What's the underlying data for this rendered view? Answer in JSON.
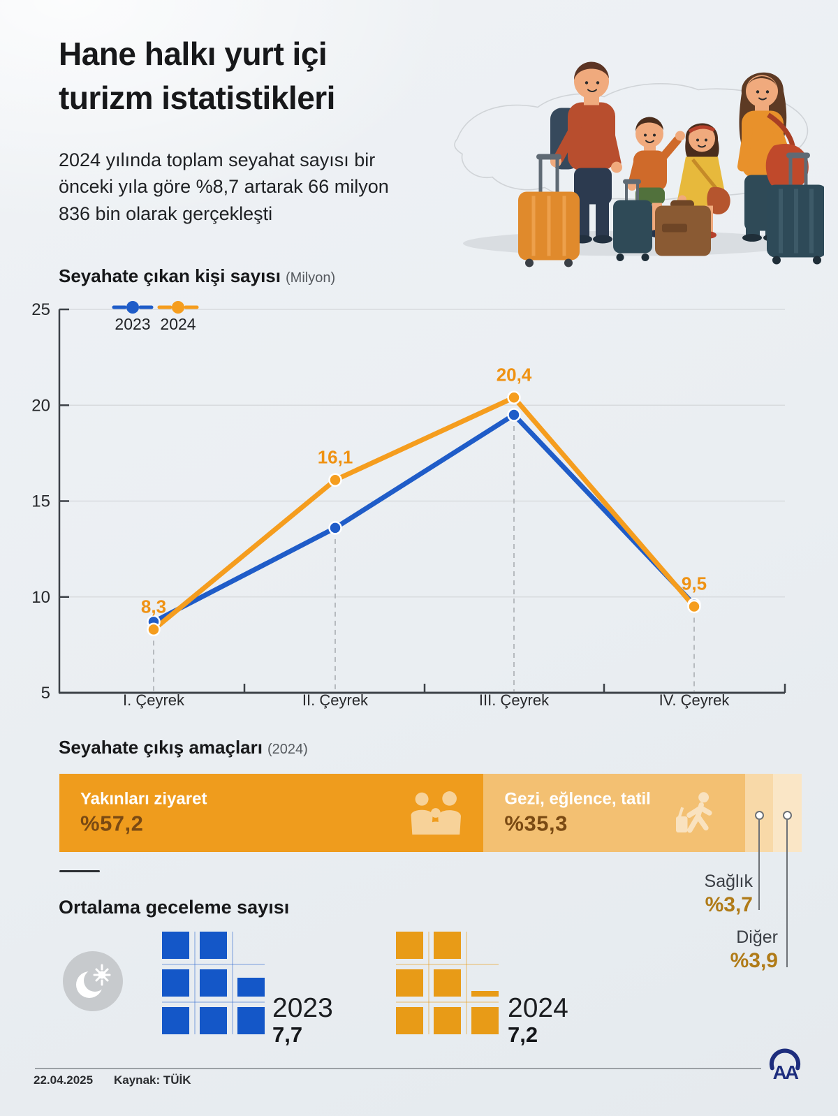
{
  "page": {
    "title": "Hane halkı yurt içi\nturizm istatistikleri",
    "subtitle": "2024 yılında toplam seyahat sayısı bir önceki yıla göre %8,7 artarak 66 milyon 836 bin olarak gerçekleşti",
    "date": "22.04.2025",
    "source": "Kaynak: TÜİK",
    "logo_text": "AA",
    "illustration": "family-with-luggage-and-turkey-map"
  },
  "colors": {
    "blue": "#1f5cc8",
    "orange": "#f59d1e",
    "label_orange": "#ef9213",
    "axis": "#3c4147",
    "grid": "#d8dbde",
    "guide": "#a9adb2",
    "waffle_blue": "#1457c8",
    "waffle_orange": "#e89b17",
    "logo_navy": "#1d2d7d"
  },
  "chart_data": [
    {
      "type": "line",
      "title": "Seyahate çıkan kişi sayısı",
      "title_suffix": "(Milyon)",
      "categories": [
        "I. Çeyrek",
        "II. Çeyrek",
        "III. Çeyrek",
        "IV. Çeyrek"
      ],
      "series": [
        {
          "name": "2023",
          "color": "#1f5cc8",
          "values": [
            8.7,
            13.6,
            19.5,
            9.6
          ],
          "value_labels": null
        },
        {
          "name": "2024",
          "color": "#f59d1e",
          "values": [
            8.3,
            16.1,
            20.4,
            9.5
          ],
          "value_labels": [
            "8,3",
            "16,1",
            "20,4",
            "9,5"
          ]
        }
      ],
      "ylim": [
        5,
        25
      ],
      "yticks": [
        25,
        20,
        15,
        10,
        5
      ],
      "grid": true,
      "legend_position": "top-left",
      "note": "2023 values estimated from gridlines; only 2024 points carry data labels"
    },
    {
      "type": "bar",
      "subtype": "stacked-horizontal-100pct",
      "title": "Seyahate çıkış amaçları",
      "title_suffix": "(2024)",
      "segments": [
        {
          "label": "Yakınları ziyaret",
          "pct_label": "%57,2",
          "value": 57.2,
          "color": "#ef9c1d",
          "icon": "family-icon"
        },
        {
          "label": "Gezi, eğlence, tatil",
          "pct_label": "%35,3",
          "value": 35.3,
          "color": "#f3c072",
          "icon": "traveler-icon"
        },
        {
          "label": "Sağlık",
          "pct_label": "%3,7",
          "value": 3.7,
          "color": "#f8d9a8",
          "callout": true
        },
        {
          "label": "Diğer",
          "pct_label": "%3,9",
          "value": 3.9,
          "color": "#fae6c6",
          "callout": true
        }
      ]
    },
    {
      "type": "waffle",
      "title": "Ortalama geceleme sayısı",
      "icon": "moon-sun-icon",
      "grid": {
        "cols": 3,
        "rows": 3,
        "unit_per_square": 1
      },
      "items": [
        {
          "year": "2023",
          "value": 7.7,
          "value_label": "7,7",
          "color": "#1457c8",
          "lattice": "rgba(31,92,200,0.28)"
        },
        {
          "year": "2024",
          "value": 7.2,
          "value_label": "7,2",
          "color": "#e89b17",
          "lattice": "rgba(232,155,23,0.32)"
        }
      ]
    }
  ]
}
